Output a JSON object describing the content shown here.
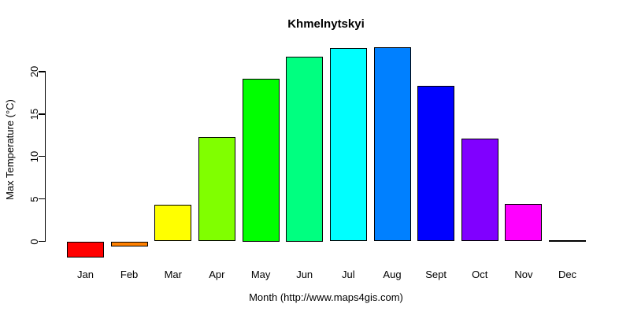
{
  "chart_data": {
    "type": "bar",
    "title": "Khmelnytskyi",
    "xlabel": "Month (http://www.maps4gis.com)",
    "ylabel": "Max Temperature (°C)",
    "categories": [
      "Jan",
      "Feb",
      "Mar",
      "Apr",
      "May",
      "Jun",
      "Jul",
      "Aug",
      "Sept",
      "Oct",
      "Nov",
      "Dec"
    ],
    "values": [
      -1.9,
      -0.6,
      4.3,
      12.3,
      19.2,
      21.8,
      22.8,
      22.9,
      18.3,
      12.1,
      4.4,
      0.1
    ],
    "bar_colors": [
      "#FF0000",
      "#FF8000",
      "#FFFF00",
      "#80FF00",
      "#00FF00",
      "#00FF80",
      "#00FFFF",
      "#0080FF",
      "#0000FF",
      "#8000FF",
      "#FF00FF",
      "#FF0080"
    ],
    "bar_border_color": "#000000",
    "yticks": [
      0,
      5,
      10,
      15,
      20
    ],
    "ylim": [
      -2.5,
      23.5
    ],
    "grid": false,
    "legend": false,
    "background": "#FFFFFF",
    "axis_color": "#000000",
    "text_color": "#000000"
  }
}
